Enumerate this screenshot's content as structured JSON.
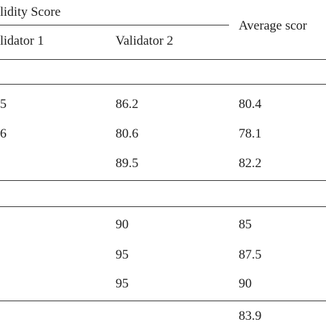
{
  "header": {
    "group_title": "lidity Score",
    "col1": "lidator 1",
    "col2": "Validator 2",
    "col3": "Average scor"
  },
  "table": {
    "rows": [
      {
        "v1": "5",
        "v2": "86.2",
        "avg": "80.4"
      },
      {
        "v1": "6",
        "v2": "80.6",
        "avg": "78.1"
      },
      {
        "v2": "89.5",
        "avg": "82.2"
      },
      {
        "v2": "90",
        "avg": "85"
      },
      {
        "v2": "95",
        "avg": "87.5"
      },
      {
        "v2": "95",
        "avg": "90"
      },
      {
        "avg": "83.9"
      }
    ]
  }
}
